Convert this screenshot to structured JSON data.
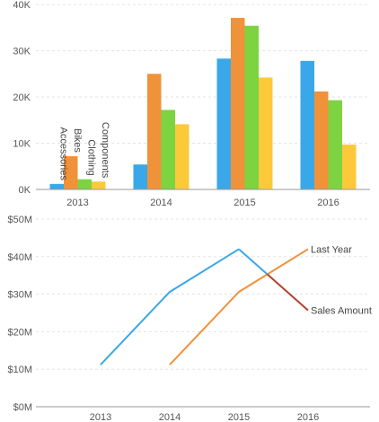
{
  "chart_data": [
    {
      "type": "bar",
      "categories": [
        "2013",
        "2014",
        "2015",
        "2016"
      ],
      "series": [
        {
          "name": "Accessories",
          "color": "#3aa8e8",
          "values": [
            1200,
            5400,
            28300,
            27800
          ]
        },
        {
          "name": "Bikes",
          "color": "#f0923a",
          "values": [
            7200,
            25000,
            37100,
            21200
          ]
        },
        {
          "name": "Clothing",
          "color": "#7ed340",
          "values": [
            2200,
            17200,
            35400,
            19300
          ]
        },
        {
          "name": "Components",
          "color": "#fbc93a",
          "values": [
            1700,
            14100,
            24200,
            9700
          ]
        }
      ],
      "yticks": [
        "0K",
        "10K",
        "20K",
        "30K",
        "40K"
      ],
      "ytick_values": [
        0,
        10000,
        20000,
        30000,
        40000
      ],
      "ylim": [
        0,
        40000
      ],
      "grid": true,
      "legend": "series names written vertically above the 2013 bars"
    },
    {
      "type": "line",
      "x": [
        "2013",
        "2014",
        "2015",
        "2016"
      ],
      "series": [
        {
          "name": "Sales Amount",
          "color": "#3aa8e8",
          "highlight_color": "#b5402a",
          "values": [
            11200000,
            30600000,
            42000000,
            25700000
          ]
        },
        {
          "name": "Last Year",
          "color": "#f0923a",
          "values": [
            null,
            11200000,
            30600000,
            42000000
          ]
        }
      ],
      "yticks": [
        "$0M",
        "$10M",
        "$20M",
        "$30M",
        "$40M",
        "$50M"
      ],
      "ytick_values": [
        0,
        10000000,
        20000000,
        30000000,
        40000000,
        50000000
      ],
      "ylim": [
        0,
        50000000
      ],
      "grid": true,
      "legend": "series names at line ends"
    }
  ]
}
